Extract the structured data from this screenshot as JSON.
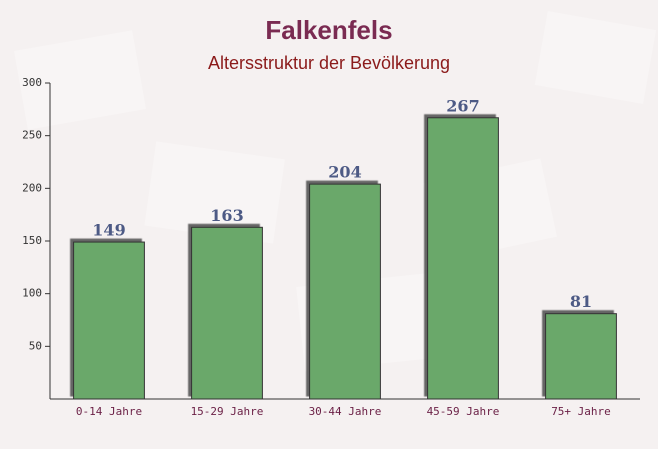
{
  "chart_data": {
    "type": "bar",
    "title": "Falkenfels",
    "subtitle": "Altersstruktur der Bevölkerung",
    "categories": [
      "0-14 Jahre",
      "15-29 Jahre",
      "30-44 Jahre",
      "45-59 Jahre",
      "75+ Jahre"
    ],
    "values": [
      149,
      163,
      204,
      267,
      81
    ],
    "color": "#6aa86a",
    "ylim": [
      0,
      300
    ],
    "yticks": [
      50,
      100,
      150,
      200,
      250,
      300
    ],
    "grid": false
  }
}
